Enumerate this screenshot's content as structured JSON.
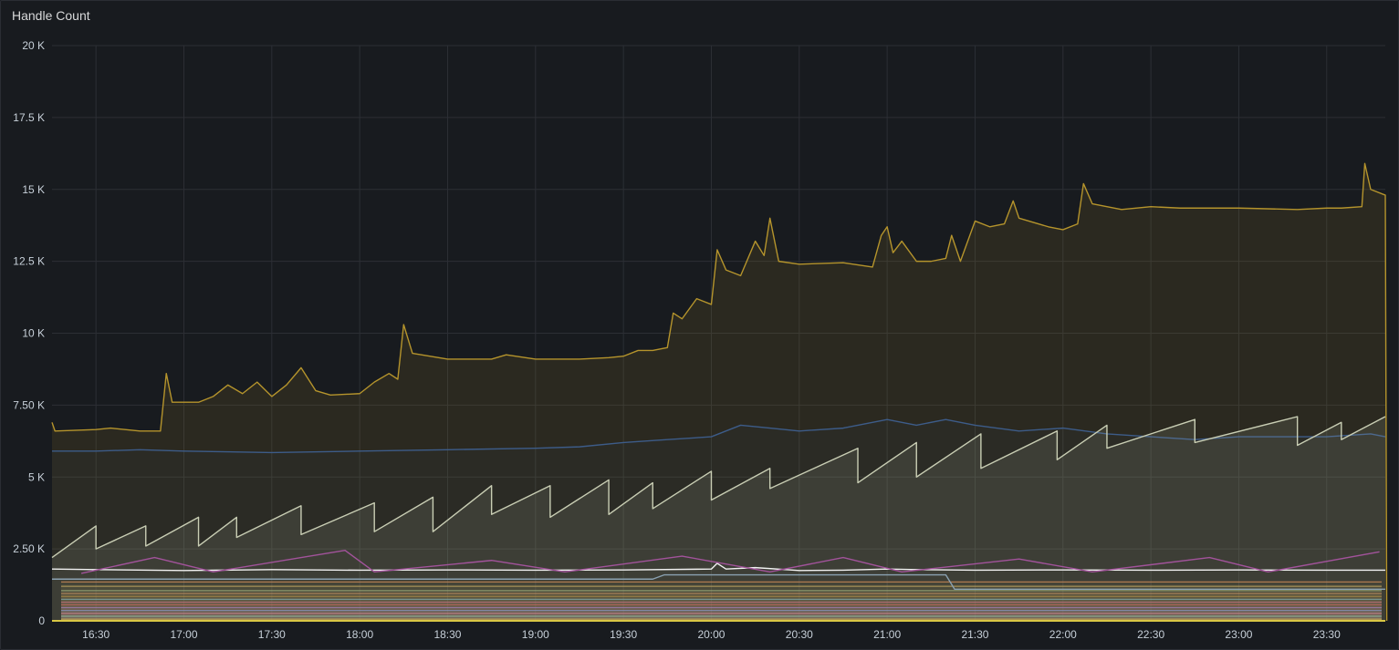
{
  "panel": {
    "title": "Handle Count"
  },
  "chart_data": {
    "type": "area",
    "title": "Handle Count",
    "xlabel": "",
    "ylabel": "",
    "x_ticks": [
      "16:30",
      "17:00",
      "17:30",
      "18:00",
      "18:30",
      "19:00",
      "19:30",
      "20:00",
      "20:30",
      "21:00",
      "21:30",
      "22:00",
      "22:30",
      "23:00",
      "23:30"
    ],
    "y_ticks": [
      "0",
      "2.50 K",
      "5 K",
      "7.50 K",
      "10 K",
      "12.5 K",
      "15 K",
      "17.5 K",
      "20 K"
    ],
    "ylim": [
      0,
      20000
    ],
    "x_range": [
      "16:15",
      "23:50"
    ],
    "grid": true,
    "legend": "none",
    "series": [
      {
        "color": "#b5942c",
        "fill_opacity": 0.12,
        "points": [
          [
            "16:15",
            6900
          ],
          [
            "16:16",
            6600
          ],
          [
            "16:30",
            6650
          ],
          [
            "16:35",
            6700
          ],
          [
            "16:45",
            6600
          ],
          [
            "16:52",
            6600
          ],
          [
            "16:54",
            8600
          ],
          [
            "16:56",
            7600
          ],
          [
            "17:05",
            7600
          ],
          [
            "17:10",
            7800
          ],
          [
            "17:15",
            8200
          ],
          [
            "17:20",
            7900
          ],
          [
            "17:25",
            8300
          ],
          [
            "17:30",
            7800
          ],
          [
            "17:35",
            8200
          ],
          [
            "17:40",
            8800
          ],
          [
            "17:45",
            8000
          ],
          [
            "17:50",
            7850
          ],
          [
            "18:00",
            7900
          ],
          [
            "18:05",
            8300
          ],
          [
            "18:10",
            8600
          ],
          [
            "18:13",
            8400
          ],
          [
            "18:15",
            10300
          ],
          [
            "18:18",
            9300
          ],
          [
            "18:30",
            9100
          ],
          [
            "18:45",
            9100
          ],
          [
            "18:50",
            9250
          ],
          [
            "19:00",
            9100
          ],
          [
            "19:15",
            9100
          ],
          [
            "19:25",
            9150
          ],
          [
            "19:30",
            9200
          ],
          [
            "19:35",
            9400
          ],
          [
            "19:40",
            9400
          ],
          [
            "19:45",
            9500
          ],
          [
            "19:47",
            10700
          ],
          [
            "19:50",
            10500
          ],
          [
            "19:55",
            11200
          ],
          [
            "20:00",
            11000
          ],
          [
            "20:02",
            12900
          ],
          [
            "20:05",
            12200
          ],
          [
            "20:10",
            12000
          ],
          [
            "20:15",
            13200
          ],
          [
            "20:18",
            12700
          ],
          [
            "20:20",
            14000
          ],
          [
            "20:23",
            12500
          ],
          [
            "20:30",
            12400
          ],
          [
            "20:45",
            12450
          ],
          [
            "20:55",
            12300
          ],
          [
            "20:58",
            13400
          ],
          [
            "21:00",
            13700
          ],
          [
            "21:02",
            12800
          ],
          [
            "21:05",
            13200
          ],
          [
            "21:10",
            12500
          ],
          [
            "21:15",
            12500
          ],
          [
            "21:20",
            12600
          ],
          [
            "21:22",
            13400
          ],
          [
            "21:25",
            12500
          ],
          [
            "21:30",
            13900
          ],
          [
            "21:35",
            13700
          ],
          [
            "21:40",
            13800
          ],
          [
            "21:43",
            14600
          ],
          [
            "21:45",
            14000
          ],
          [
            "21:55",
            13700
          ],
          [
            "22:00",
            13600
          ],
          [
            "22:05",
            13800
          ],
          [
            "22:07",
            15200
          ],
          [
            "22:10",
            14500
          ],
          [
            "22:20",
            14300
          ],
          [
            "22:30",
            14400
          ],
          [
            "22:40",
            14350
          ],
          [
            "23:00",
            14350
          ],
          [
            "23:20",
            14300
          ],
          [
            "23:30",
            14350
          ],
          [
            "23:35",
            14350
          ],
          [
            "23:42",
            14400
          ],
          [
            "23:43",
            15900
          ],
          [
            "23:45",
            15000
          ],
          [
            "23:50",
            14800
          ],
          [
            "23:50.5",
            0
          ]
        ]
      },
      {
        "color": "#3d5c89",
        "fill_opacity": 0.05,
        "points": [
          [
            "16:15",
            5900
          ],
          [
            "16:30",
            5900
          ],
          [
            "16:45",
            5950
          ],
          [
            "17:00",
            5900
          ],
          [
            "17:30",
            5850
          ],
          [
            "18:00",
            5900
          ],
          [
            "18:30",
            5950
          ],
          [
            "19:00",
            6000
          ],
          [
            "19:15",
            6050
          ],
          [
            "19:30",
            6200
          ],
          [
            "19:45",
            6300
          ],
          [
            "20:00",
            6400
          ],
          [
            "20:10",
            6800
          ],
          [
            "20:20",
            6700
          ],
          [
            "20:30",
            6600
          ],
          [
            "20:45",
            6700
          ],
          [
            "21:00",
            7000
          ],
          [
            "21:10",
            6800
          ],
          [
            "21:20",
            7000
          ],
          [
            "21:30",
            6800
          ],
          [
            "21:45",
            6600
          ],
          [
            "22:00",
            6700
          ],
          [
            "22:15",
            6500
          ],
          [
            "22:30",
            6400
          ],
          [
            "22:45",
            6300
          ],
          [
            "23:00",
            6400
          ],
          [
            "23:15",
            6400
          ],
          [
            "23:30",
            6400
          ],
          [
            "23:45",
            6500
          ],
          [
            "23:50",
            6400
          ]
        ]
      },
      {
        "color": "#c9ceb4",
        "fill_opacity": 0.12,
        "sawtooth": [
          [
            [
              "16:15",
              2200
            ],
            [
              "16:30",
              3300
            ]
          ],
          [
            [
              "16:30",
              2500
            ],
            [
              "16:47",
              3300
            ]
          ],
          [
            [
              "16:47",
              2600
            ],
            [
              "17:05",
              3600
            ]
          ],
          [
            [
              "17:05",
              2600
            ],
            [
              "17:18",
              3600
            ]
          ],
          [
            [
              "17:18",
              2900
            ],
            [
              "17:40",
              4000
            ]
          ],
          [
            [
              "17:40",
              3000
            ],
            [
              "18:05",
              4100
            ]
          ],
          [
            [
              "18:05",
              3100
            ],
            [
              "18:25",
              4300
            ]
          ],
          [
            [
              "18:25",
              3100
            ],
            [
              "18:45",
              4700
            ]
          ],
          [
            [
              "18:45",
              3700
            ],
            [
              "19:05",
              4700
            ]
          ],
          [
            [
              "19:05",
              3600
            ],
            [
              "19:25",
              4900
            ]
          ],
          [
            [
              "19:25",
              3700
            ],
            [
              "19:40",
              4800
            ]
          ],
          [
            [
              "19:40",
              3900
            ],
            [
              "20:00",
              5200
            ]
          ],
          [
            [
              "20:00",
              4200
            ],
            [
              "20:20",
              5300
            ]
          ],
          [
            [
              "20:20",
              4600
            ],
            [
              "20:50",
              6000
            ]
          ],
          [
            [
              "20:50",
              4800
            ],
            [
              "21:10",
              6200
            ]
          ],
          [
            [
              "21:10",
              5000
            ],
            [
              "21:32",
              6500
            ]
          ],
          [
            [
              "21:32",
              5300
            ],
            [
              "21:58",
              6600
            ]
          ],
          [
            [
              "21:58",
              5600
            ],
            [
              "22:15",
              6800
            ]
          ],
          [
            [
              "22:15",
              6000
            ],
            [
              "22:45",
              7000
            ]
          ],
          [
            [
              "22:45",
              6200
            ],
            [
              "23:20",
              7100
            ]
          ],
          [
            [
              "23:20",
              6100
            ],
            [
              "23:35",
              6900
            ]
          ],
          [
            [
              "23:35",
              6300
            ],
            [
              "23:50",
              7100
            ]
          ]
        ]
      },
      {
        "color": "#f2f2f2",
        "points": [
          [
            "16:15",
            1800
          ],
          [
            "16:30",
            1780
          ],
          [
            "17:00",
            1750
          ],
          [
            "17:30",
            1780
          ],
          [
            "18:00",
            1760
          ],
          [
            "18:30",
            1770
          ],
          [
            "19:00",
            1760
          ],
          [
            "19:30",
            1770
          ],
          [
            "20:00",
            1800
          ],
          [
            "20:02",
            2000
          ],
          [
            "20:05",
            1800
          ],
          [
            "20:15",
            1850
          ],
          [
            "20:30",
            1750
          ],
          [
            "20:45",
            1760
          ],
          [
            "21:00",
            1800
          ],
          [
            "21:10",
            1780
          ],
          [
            "21:30",
            1760
          ],
          [
            "22:00",
            1770
          ],
          [
            "22:30",
            1760
          ],
          [
            "23:00",
            1770
          ],
          [
            "23:30",
            1760
          ],
          [
            "23:50",
            1760
          ]
        ]
      },
      {
        "color": "#8aa1b1",
        "points": [
          [
            "16:15",
            1450
          ],
          [
            "19:40",
            1450
          ],
          [
            "19:44",
            1600
          ],
          [
            "21:20",
            1600
          ],
          [
            "21:23",
            1100
          ],
          [
            "23:50",
            1100
          ]
        ]
      },
      {
        "color": "#a2539b",
        "sawtooth": [
          [
            [
              "16:25",
              1650
            ],
            [
              "16:50",
              2200
            ]
          ],
          [
            [
              "17:10",
              1700
            ],
            [
              "17:55",
              2450
            ]
          ],
          [
            [
              "18:05",
              1700
            ],
            [
              "18:45",
              2100
            ]
          ],
          [
            [
              "19:10",
              1700
            ],
            [
              "19:50",
              2250
            ]
          ],
          [
            [
              "20:20",
              1700
            ],
            [
              "20:45",
              2200
            ]
          ],
          [
            [
              "21:05",
              1700
            ],
            [
              "21:45",
              2150
            ]
          ],
          [
            [
              "22:10",
              1700
            ],
            [
              "22:50",
              2200
            ]
          ],
          [
            [
              "23:10",
              1700
            ],
            [
              "23:48",
              2400
            ]
          ]
        ]
      }
    ],
    "baseline_bands": [
      {
        "color": "#d6804d",
        "value": 1350
      },
      {
        "color": "#c7a856",
        "value": 1200
      },
      {
        "color": "#9bb07a",
        "value": 1050
      },
      {
        "color": "#c88a5a",
        "value": 950
      },
      {
        "color": "#b8893a",
        "value": 850
      },
      {
        "color": "#6ea5b8",
        "value": 750
      },
      {
        "color": "#c45b7a",
        "value": 650
      },
      {
        "color": "#d05555",
        "value": 560
      },
      {
        "color": "#9b6fc4",
        "value": 460
      },
      {
        "color": "#7d8fd1",
        "value": 360
      },
      {
        "color": "#e07b9e",
        "value": 260
      },
      {
        "color": "#8fcfb5",
        "value": 160
      },
      {
        "color": "#d9b44a",
        "value": 60
      }
    ]
  }
}
